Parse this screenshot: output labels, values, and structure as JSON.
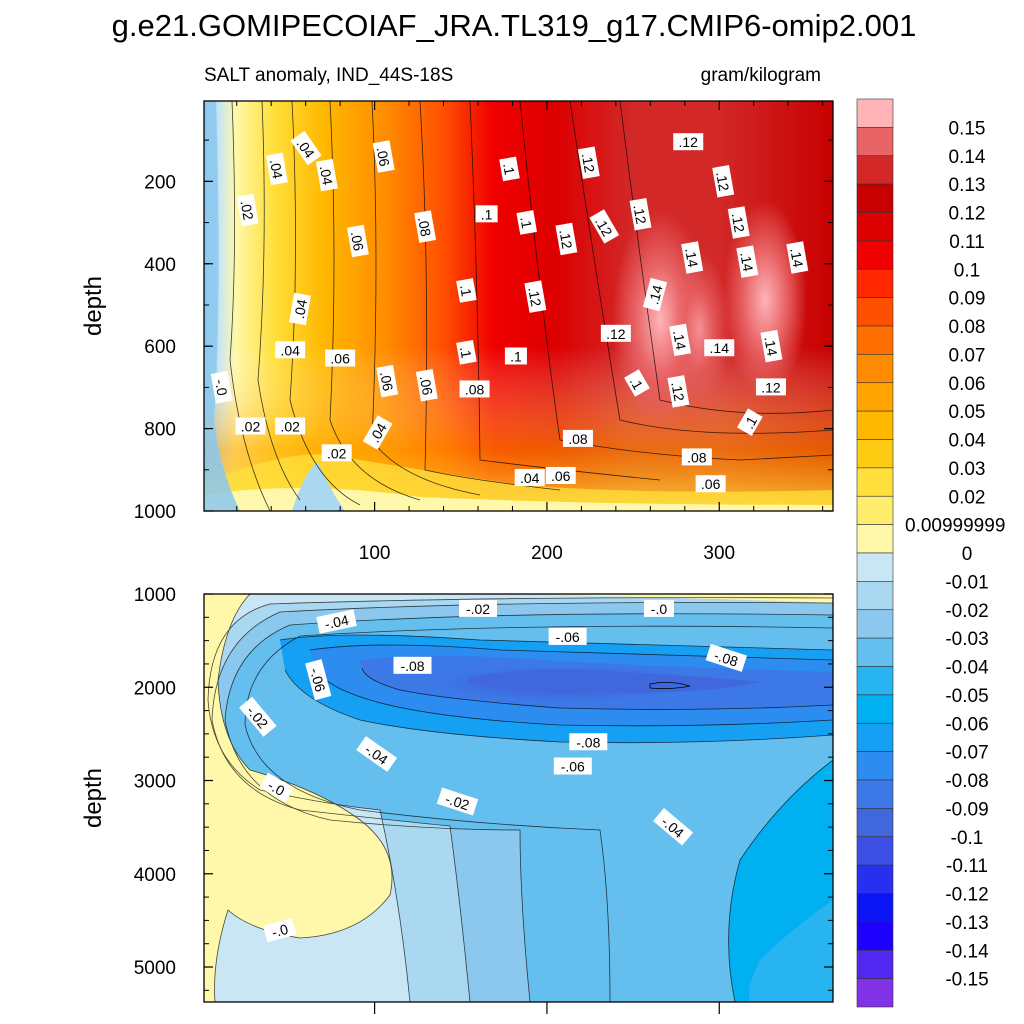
{
  "title": "g.e21.GOMIPECOIAF_JRA.TL319_g17.CMIP6-omip2.001",
  "chart_data": [
    {
      "type": "heatmap",
      "subtitle_left": "SALT anomaly, IND_44S-18S",
      "subtitle_right": "gram/kilogram",
      "xlabel": "",
      "ylabel": "depth",
      "xlim": [
        1,
        366
      ],
      "ylim": [
        1000,
        5
      ],
      "x_ticks": [
        100,
        200,
        300
      ],
      "y_ticks": [
        200,
        400,
        600,
        800,
        1000
      ],
      "contour_labels": [
        {
          "text": ".04",
          "x": 60,
          "y": 120,
          "rot": 55
        },
        {
          "text": ".06",
          "x": 105,
          "y": 140,
          "rot": 80
        },
        {
          "text": ".04",
          "x": 43,
          "y": 170,
          "rot": 80
        },
        {
          "text": ".04",
          "x": 72,
          "y": 185,
          "rot": 80
        },
        {
          "text": ".02",
          "x": 26,
          "y": 270,
          "rot": 80
        },
        {
          "text": ".06",
          "x": 90,
          "y": 345,
          "rot": 80
        },
        {
          "text": ".08",
          "x": 129,
          "y": 310,
          "rot": 80
        },
        {
          "text": ".04",
          "x": 57,
          "y": 510,
          "rot": -80
        },
        {
          "text": ".04",
          "x": 51,
          "y": 610,
          "rot": 0
        },
        {
          "text": ".06",
          "x": 80,
          "y": 630,
          "rot": 0
        },
        {
          "text": "-.0",
          "x": 11,
          "y": 700,
          "rot": 80
        },
        {
          "text": ".06",
          "x": 107,
          "y": 685,
          "rot": 80
        },
        {
          "text": ".06",
          "x": 130,
          "y": 695,
          "rot": 80
        },
        {
          "text": ".02",
          "x": 28,
          "y": 795,
          "rot": 0
        },
        {
          "text": ".02",
          "x": 51,
          "y": 795,
          "rot": 0
        },
        {
          "text": ".04",
          "x": 102,
          "y": 810,
          "rot": -60
        },
        {
          "text": ".02",
          "x": 78,
          "y": 860,
          "rot": 0
        },
        {
          "text": ".1",
          "x": 153,
          "y": 465,
          "rot": 80
        },
        {
          "text": ".1",
          "x": 153,
          "y": 615,
          "rot": 80
        },
        {
          "text": ".08",
          "x": 158,
          "y": 705,
          "rot": 0
        },
        {
          "text": ".1",
          "x": 165,
          "y": 280,
          "rot": 0
        },
        {
          "text": ".1",
          "x": 178,
          "y": 170,
          "rot": 80
        },
        {
          "text": ".1",
          "x": 188,
          "y": 300,
          "rot": 80
        },
        {
          "text": ".1",
          "x": 182,
          "y": 625,
          "rot": 0
        },
        {
          "text": ".12",
          "x": 193,
          "y": 480,
          "rot": 80
        },
        {
          "text": ".12",
          "x": 211,
          "y": 340,
          "rot": 80
        },
        {
          "text": ".12",
          "x": 224,
          "y": 155,
          "rot": 80
        },
        {
          "text": ".12",
          "x": 233,
          "y": 310,
          "rot": 60
        },
        {
          "text": ".12",
          "x": 254,
          "y": 280,
          "rot": 80
        },
        {
          "text": ".12",
          "x": 282,
          "y": 105,
          "rot": 0
        },
        {
          "text": ".12",
          "x": 302,
          "y": 200,
          "rot": 80
        },
        {
          "text": ".12",
          "x": 311,
          "y": 300,
          "rot": 80
        },
        {
          "text": ".12",
          "x": 240,
          "y": 570,
          "rot": 0
        },
        {
          "text": ".14",
          "x": 263,
          "y": 475,
          "rot": -75
        },
        {
          "text": ".14",
          "x": 284,
          "y": 385,
          "rot": 80
        },
        {
          "text": ".14",
          "x": 316,
          "y": 395,
          "rot": 80
        },
        {
          "text": ".14",
          "x": 345,
          "y": 385,
          "rot": 80
        },
        {
          "text": ".14",
          "x": 277,
          "y": 585,
          "rot": 80
        },
        {
          "text": ".14",
          "x": 300,
          "y": 605,
          "rot": 0
        },
        {
          "text": ".14",
          "x": 330,
          "y": 600,
          "rot": 80
        },
        {
          "text": ".1",
          "x": 252,
          "y": 690,
          "rot": 60
        },
        {
          "text": ".12",
          "x": 276,
          "y": 710,
          "rot": 80
        },
        {
          "text": ".12",
          "x": 330,
          "y": 700,
          "rot": 0
        },
        {
          "text": ".1",
          "x": 318,
          "y": 785,
          "rot": -60
        },
        {
          "text": ".08",
          "x": 218,
          "y": 825,
          "rot": 0
        },
        {
          "text": ".08",
          "x": 287,
          "y": 870,
          "rot": 0
        },
        {
          "text": ".04",
          "x": 190,
          "y": 920,
          "rot": 0
        },
        {
          "text": ".06",
          "x": 208,
          "y": 915,
          "rot": 0
        },
        {
          "text": ".06",
          "x": 295,
          "y": 935,
          "rot": 0
        }
      ]
    },
    {
      "type": "heatmap",
      "xlabel": "",
      "ylabel": "depth",
      "xlim": [
        1,
        366
      ],
      "ylim": [
        5375,
        1000
      ],
      "y_ticks": [
        1000,
        2000,
        3000,
        4000,
        5000
      ],
      "contour_labels": [
        {
          "text": "-.02",
          "x": 160,
          "y": 1160,
          "rot": 0
        },
        {
          "text": "-.0",
          "x": 265,
          "y": 1160,
          "rot": 0
        },
        {
          "text": "-.04",
          "x": 78,
          "y": 1300,
          "rot": -12
        },
        {
          "text": "-.06",
          "x": 212,
          "y": 1460,
          "rot": 0
        },
        {
          "text": "-.08",
          "x": 122,
          "y": 1770,
          "rot": 0
        },
        {
          "text": "-.08",
          "x": 304,
          "y": 1690,
          "rot": 18
        },
        {
          "text": "-.06",
          "x": 67,
          "y": 1920,
          "rot": 75
        },
        {
          "text": "-.02",
          "x": 32,
          "y": 2320,
          "rot": 50
        },
        {
          "text": "-.04",
          "x": 101,
          "y": 2720,
          "rot": 35
        },
        {
          "text": "-.08",
          "x": 224,
          "y": 2590,
          "rot": 0
        },
        {
          "text": "-.06",
          "x": 215,
          "y": 2850,
          "rot": 0
        },
        {
          "text": "-.0",
          "x": 43,
          "y": 3080,
          "rot": 30
        },
        {
          "text": "-.02",
          "x": 148,
          "y": 3230,
          "rot": 18
        },
        {
          "text": "-.04",
          "x": 273,
          "y": 3500,
          "rot": 40
        },
        {
          "text": "-.0",
          "x": 45,
          "y": 4610,
          "rot": -15
        }
      ]
    }
  ],
  "colorbar": {
    "labels": [
      "0.15",
      "0.14",
      "0.13",
      "0.12",
      "0.11",
      "0.1",
      "0.09",
      "0.08",
      "0.07",
      "0.06",
      "0.05",
      "0.04",
      "0.03",
      "0.02",
      "0.00999999",
      "0",
      "-0.01",
      "-0.02",
      "-0.03",
      "-0.04",
      "-0.05",
      "-0.06",
      "-0.07",
      "-0.08",
      "-0.09",
      "-0.1",
      "-0.11",
      "-0.12",
      "-0.13",
      "-0.14",
      "-0.15"
    ],
    "colors": [
      "#ffb4b8",
      "#e86466",
      "#d22828",
      "#c80000",
      "#dc0000",
      "#f00000",
      "#ff2800",
      "#ff5000",
      "#ff6e00",
      "#ff8c00",
      "#ffa400",
      "#ffb800",
      "#ffcc14",
      "#ffe03c",
      "#ffee6e",
      "#fff8aa",
      "#c8e6f4",
      "#aad8f0",
      "#8cc8ee",
      "#64beee",
      "#28b4f0",
      "#00b0f0",
      "#16a0f4",
      "#2c8cf0",
      "#3c78e6",
      "#4068dc",
      "#3c50e6",
      "#2830f0",
      "#0a14f4",
      "#1e00ff",
      "#5028f0",
      "#8232e6"
    ]
  }
}
